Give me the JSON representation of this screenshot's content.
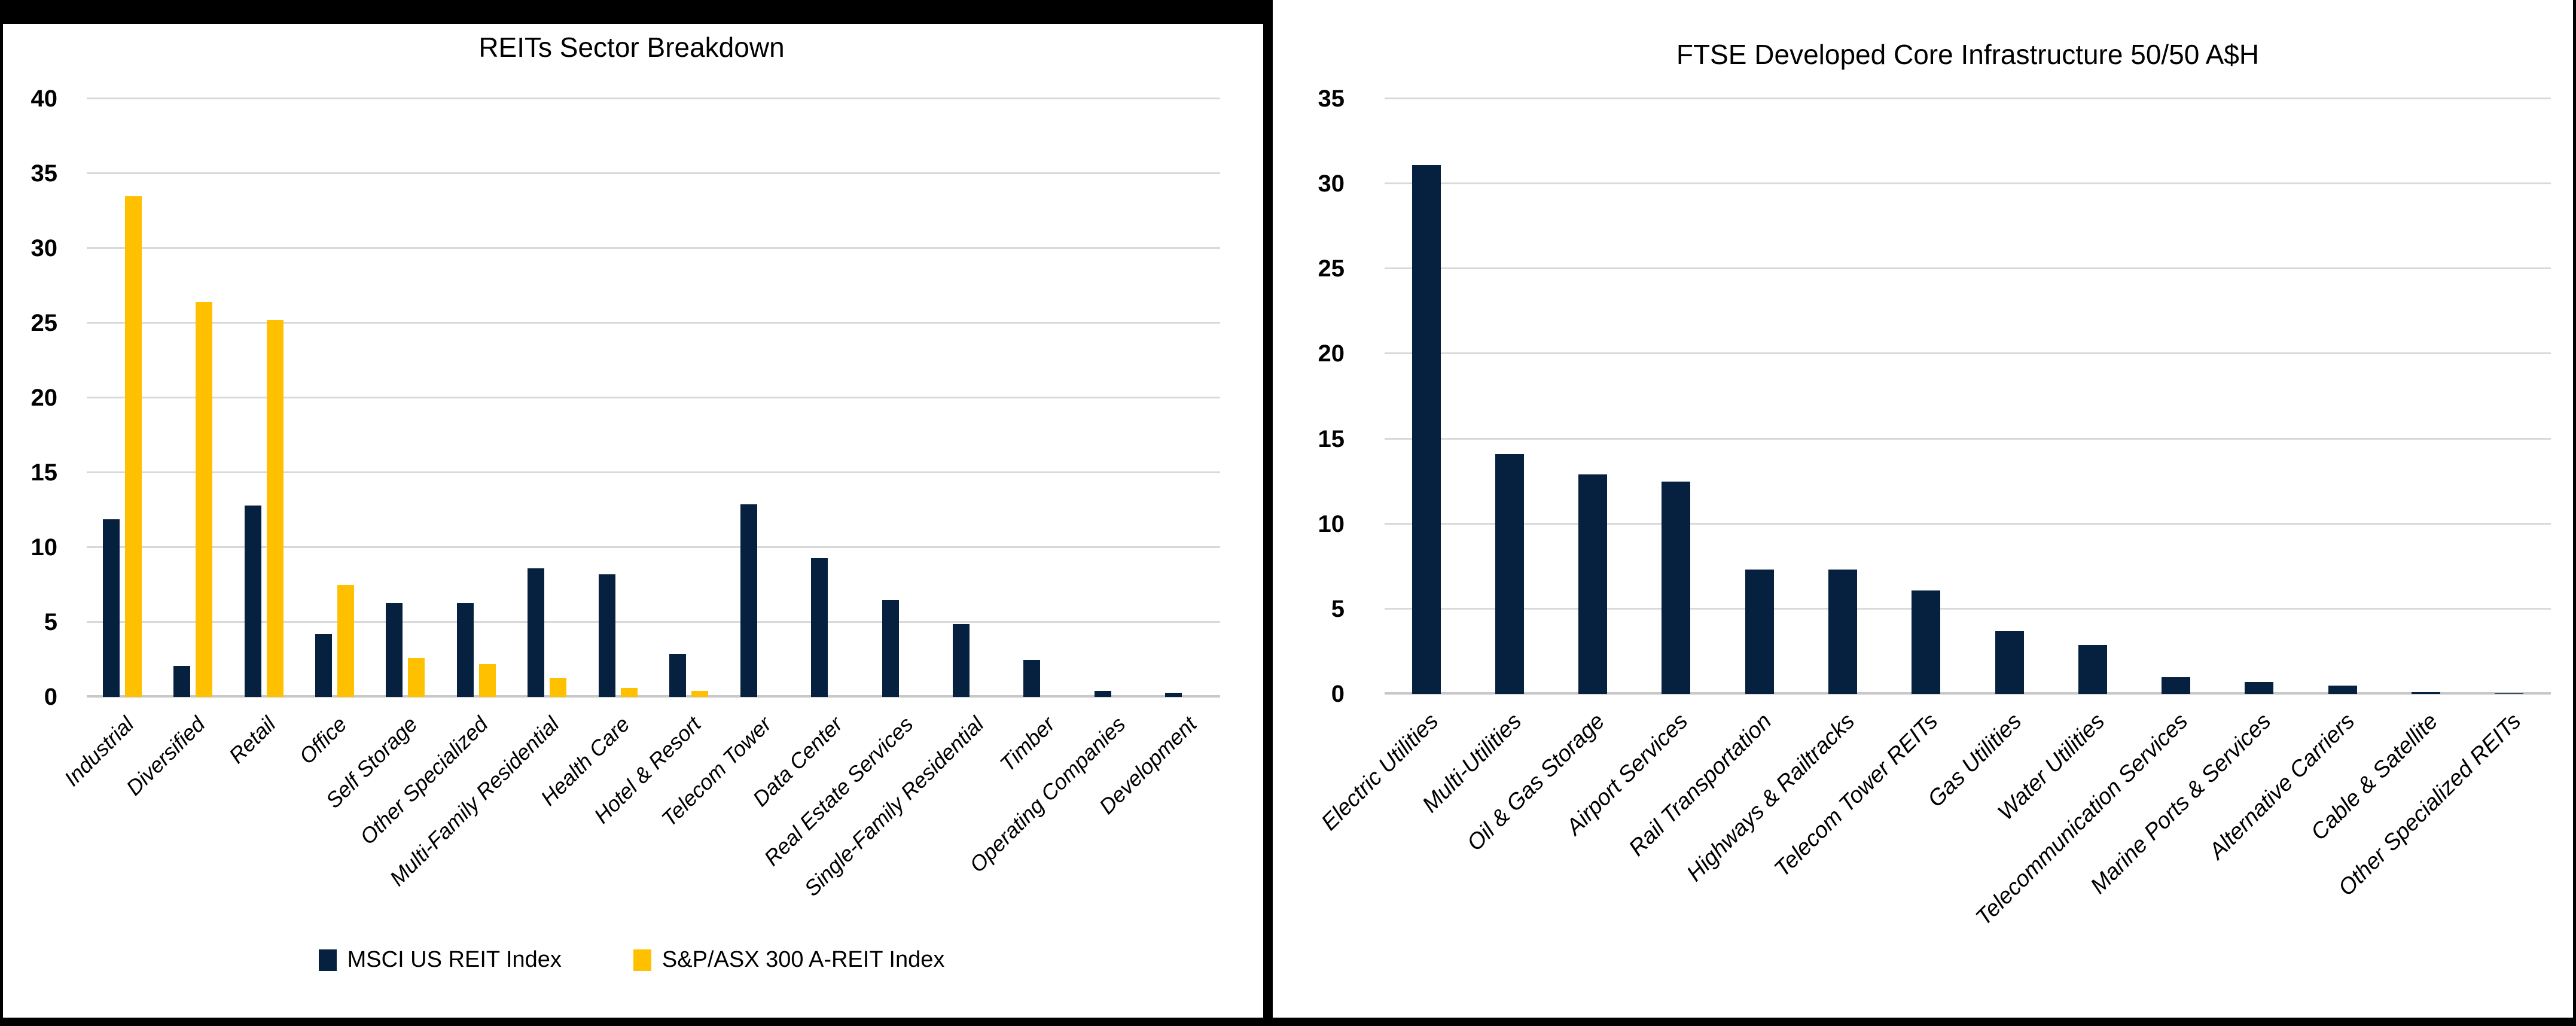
{
  "panels": {
    "left_title": "REITs Sector Breakdown",
    "right_title": "FTSE Developed Core Infrastructure 50/50 A$H"
  },
  "colors": {
    "navy": "#06203F",
    "gold": "#FFC000",
    "gridline": "#D9D9D9",
    "border": "#000000"
  },
  "chart_data": [
    {
      "type": "bar",
      "title": "REITs Sector Breakdown",
      "categories": [
        "Industrial",
        "Diversified",
        "Retail",
        "Office",
        "Self Storage",
        "Other Specialized",
        "Multi-Family Residential",
        "Health Care",
        "Hotel & Resort",
        "Telecom Tower",
        "Data Center",
        "Real Estate Services",
        "Single-Family Residential",
        "Timber",
        "Operating Companies",
        "Development"
      ],
      "series": [
        {
          "name": "MSCI US REIT Index",
          "color": "#06203F",
          "values": [
            11.9,
            2.1,
            12.8,
            4.2,
            6.3,
            6.3,
            8.6,
            8.2,
            2.9,
            12.9,
            9.3,
            6.5,
            4.9,
            2.5,
            0.4,
            0.3
          ]
        },
        {
          "name": "S&P/ASX 300 A-REIT Index",
          "color": "#FFC000",
          "values": [
            33.5,
            26.4,
            25.2,
            7.5,
            2.6,
            2.2,
            1.3,
            0.6,
            0.4,
            0,
            0,
            0,
            0,
            0,
            0,
            0
          ]
        }
      ],
      "xlabel": "",
      "ylabel": "",
      "ylim": [
        0,
        40
      ],
      "y_ticks": [
        0,
        5,
        10,
        15,
        20,
        25,
        30,
        35,
        40
      ],
      "grid": true,
      "legend_position": "bottom"
    },
    {
      "type": "bar",
      "title": "FTSE Developed Core Infrastructure 50/50 A$H",
      "categories": [
        "Electric Utilities",
        "Multi-Utilities",
        "Oil & Gas Storage",
        "Airport Services",
        "Rail Transportation",
        "Highways & Railtracks",
        "Telecom Tower REITs",
        "Gas Utilities",
        "Water Utilities",
        "Telecommunication Services",
        "Marine Ports & Services",
        "Alternative Carriers",
        "Cable & Satellite",
        "Other Specialized REITs"
      ],
      "series": [
        {
          "name": "FTSE Developed Core Infrastructure 50/50 A$H",
          "color": "#06203F",
          "values": [
            31.1,
            14.1,
            12.9,
            12.5,
            7.3,
            7.3,
            6.1,
            3.7,
            2.9,
            1.0,
            0.7,
            0.5,
            0.1,
            0.05
          ]
        }
      ],
      "xlabel": "",
      "ylabel": "",
      "ylim": [
        0,
        35
      ],
      "y_ticks": [
        0,
        5,
        10,
        15,
        20,
        25,
        30,
        35
      ],
      "grid": true,
      "legend_position": "none"
    }
  ]
}
